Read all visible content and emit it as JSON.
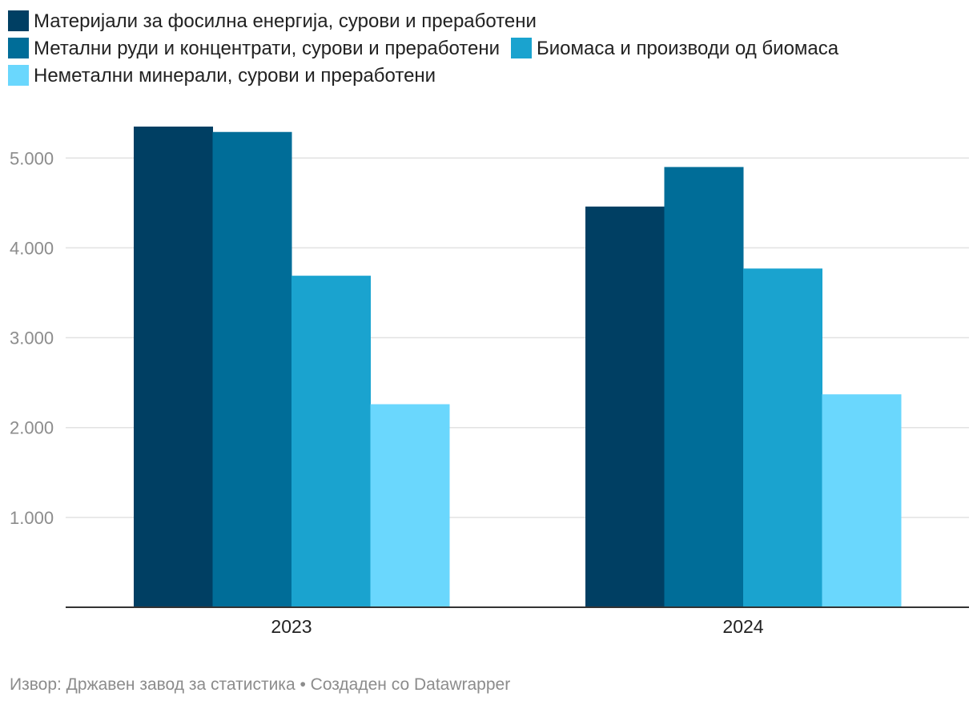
{
  "chart_data": {
    "type": "bar",
    "categories": [
      "2023",
      "2024"
    ],
    "series": [
      {
        "name": "Материјали за фосилна енергија, сурови и преработени",
        "color": "#003f63",
        "values": [
          5350,
          4460
        ]
      },
      {
        "name": "Метални руди и концентрати, сурови и преработени",
        "color": "#006d98",
        "values": [
          5290,
          4900
        ]
      },
      {
        "name": "Биомаса и производи од биомаса",
        "color": "#1aa3cf",
        "values": [
          3690,
          3770
        ]
      },
      {
        "name": "Неметални минерали, сурови и преработени",
        "color": "#6ad7fd",
        "values": [
          2260,
          2370
        ]
      }
    ],
    "ylim": [
      0,
      5350
    ],
    "yticks": [
      1000,
      2000,
      3000,
      4000,
      5000
    ],
    "ytick_labels": [
      "1.000",
      "2.000",
      "3.000",
      "4.000",
      "5.000"
    ],
    "grid": true,
    "legend_position": "top"
  },
  "footer": {
    "source": "Извор: Државен завод за статистика • Создаден со Datawrapper"
  }
}
